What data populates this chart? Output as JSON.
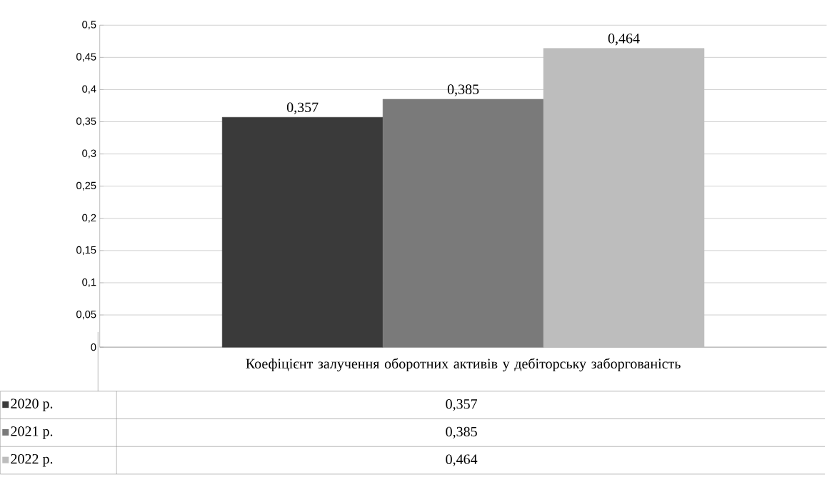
{
  "chart_data": {
    "type": "bar",
    "categories": [
      "Коефіцієнт залучення оборотних активів у дебіторську заборгованість"
    ],
    "series": [
      {
        "name": "2020 р.",
        "color": "#3a3a3a",
        "values": [
          0.357
        ],
        "value_labels": [
          "0,357"
        ]
      },
      {
        "name": "2021 р.",
        "color": "#7a7a7a",
        "values": [
          0.385
        ],
        "value_labels": [
          "0,385"
        ]
      },
      {
        "name": "2022 р.",
        "color": "#bdbdbd",
        "values": [
          0.464
        ],
        "value_labels": [
          "0,464"
        ]
      }
    ],
    "ylim": [
      0,
      0.5
    ],
    "yticks": [
      0,
      {
        "value": 0.05,
        "label": "0,05"
      },
      {
        "value": 0.1,
        "label": "0,1"
      },
      {
        "value": 0.15,
        "label": "0,15"
      },
      {
        "value": 0.2,
        "label": "0,2"
      },
      {
        "value": 0.25,
        "label": "0,25"
      },
      {
        "value": 0.3,
        "label": "0,3"
      },
      {
        "value": 0.35,
        "label": "0,35"
      },
      {
        "value": 0.4,
        "label": "0,4"
      },
      {
        "value": 0.45,
        "label": "0,45"
      },
      {
        "value": 0.5,
        "label": "0,5"
      }
    ],
    "grid": "y",
    "legend": "left"
  }
}
